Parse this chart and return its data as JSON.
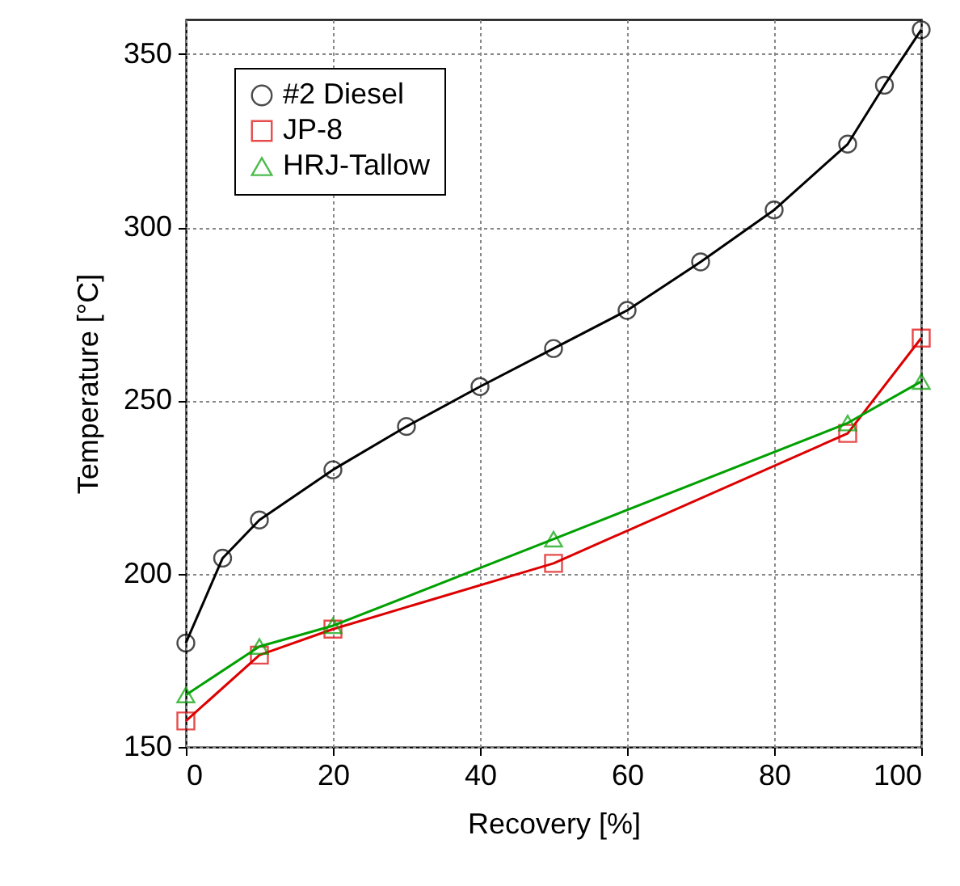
{
  "chart_data": {
    "type": "line",
    "xlabel": "Recovery [%]",
    "ylabel": "Temperature [°C]",
    "xlim": [
      0,
      100
    ],
    "xticks": [
      0,
      20,
      40,
      60,
      80,
      100
    ],
    "ylim": [
      150,
      360
    ],
    "yticks": [
      150,
      200,
      250,
      300,
      350
    ],
    "grid": true,
    "legend": "top left",
    "line_style": "solid",
    "series": [
      {
        "name": "#2 Diesel",
        "color": "#000000",
        "marker": "circle",
        "x": [
          0,
          5,
          10,
          20,
          30,
          40,
          50,
          60,
          70,
          80,
          90,
          95,
          100
        ],
        "values": [
          180,
          204.5,
          215.5,
          230,
          242.5,
          254,
          265,
          276,
          290,
          305,
          324,
          341,
          357
        ]
      },
      {
        "name": "JP-8",
        "color": "#dd0000",
        "marker": "square",
        "x": [
          0,
          10,
          20,
          50,
          90,
          100
        ],
        "values": [
          157.5,
          176.5,
          184,
          203,
          240.5,
          268
        ]
      },
      {
        "name": "HRJ-Tallow",
        "color": "#00a000",
        "marker": "triangle",
        "x": [
          0,
          10,
          20,
          50,
          90,
          100
        ],
        "values": [
          165,
          179,
          185,
          210,
          243.5,
          255.5
        ]
      }
    ]
  }
}
